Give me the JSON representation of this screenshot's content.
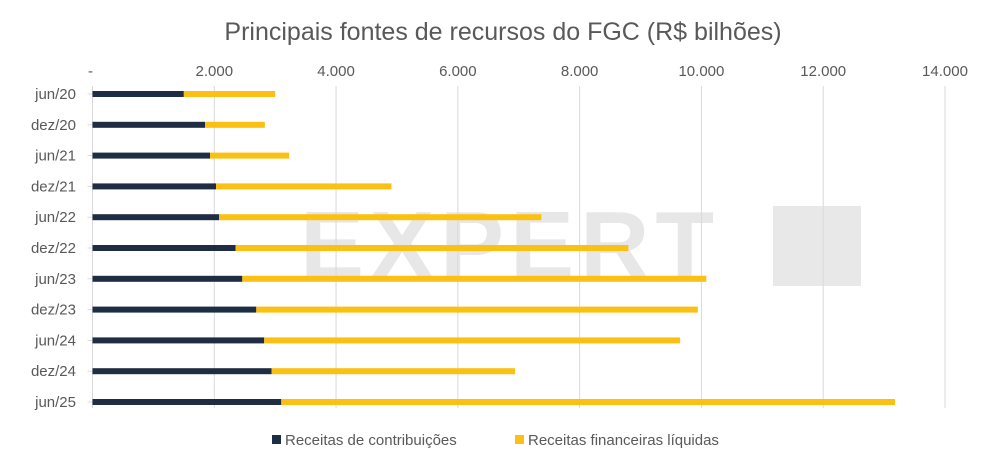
{
  "chart_data": {
    "type": "bar",
    "orientation": "horizontal",
    "stacked": true,
    "title": "Principais fontes de recursos do FGC (R$ bilhões)",
    "xlabel": "",
    "ylabel": "",
    "xlim": [
      0,
      14000
    ],
    "xticks": [
      "-",
      "2.000",
      "4.000",
      "6.000",
      "8.000",
      "10.000",
      "12.000",
      "14.000"
    ],
    "xtick_values": [
      0,
      2000,
      4000,
      6000,
      8000,
      10000,
      12000,
      14000
    ],
    "grid": true,
    "legend_position": "bottom",
    "categories": [
      "jun/20",
      "dez/20",
      "jun/21",
      "dez/21",
      "jun/22",
      "dez/22",
      "jun/23",
      "dez/23",
      "jun/24",
      "dez/24",
      "jun/25"
    ],
    "series": [
      {
        "name": "Receitas de contribuições",
        "color": "#1f2d44",
        "values": [
          1500,
          1850,
          1930,
          2030,
          2080,
          2350,
          2460,
          2690,
          2820,
          2940,
          3100
        ]
      },
      {
        "name": "Receitas financeiras líquidas",
        "color": "#fbc012",
        "values": [
          1500,
          980,
          1300,
          2880,
          5290,
          6450,
          7620,
          7250,
          6830,
          4000,
          10080
        ]
      }
    ],
    "watermark": "EXPERT XP"
  }
}
